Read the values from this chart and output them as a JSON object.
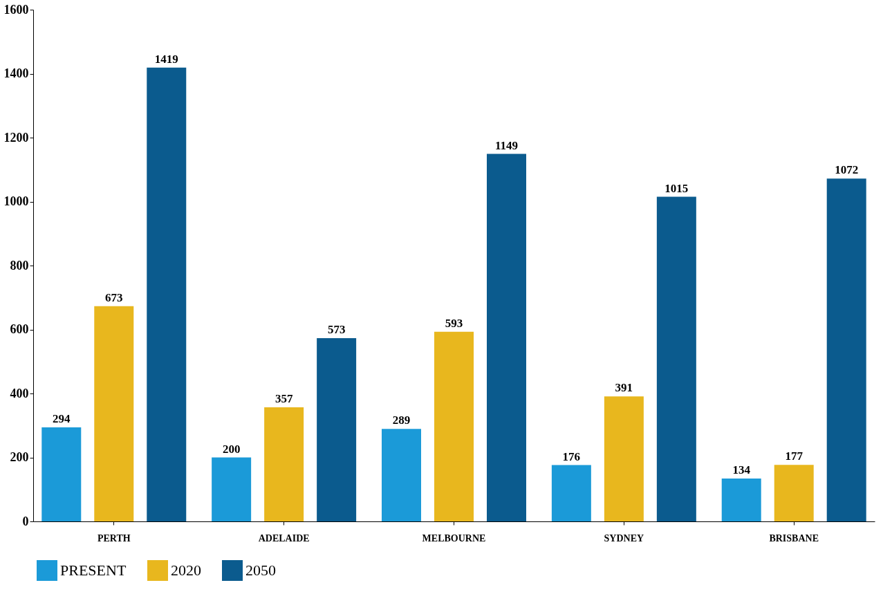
{
  "chart_data": {
    "type": "bar",
    "categories": [
      "PERTH",
      "ADELAIDE",
      "MELBOURNE",
      "SYDNEY",
      "BRISBANE"
    ],
    "series": [
      {
        "name": "PRESENT",
        "color": "#1b9ad8",
        "values": [
          294,
          200,
          289,
          176,
          134
        ]
      },
      {
        "name": "2020",
        "color": "#e8b71e",
        "values": [
          673,
          357,
          593,
          391,
          177
        ]
      },
      {
        "name": "2050",
        "color": "#0b5b8e",
        "values": [
          1419,
          573,
          1149,
          1015,
          1072
        ]
      }
    ],
    "ylim": [
      0,
      1600
    ],
    "yticks": [
      0,
      200,
      400,
      600,
      800,
      1000,
      1200,
      1400,
      1600
    ],
    "data_labels": true,
    "grid": false,
    "legend": "bottom"
  }
}
